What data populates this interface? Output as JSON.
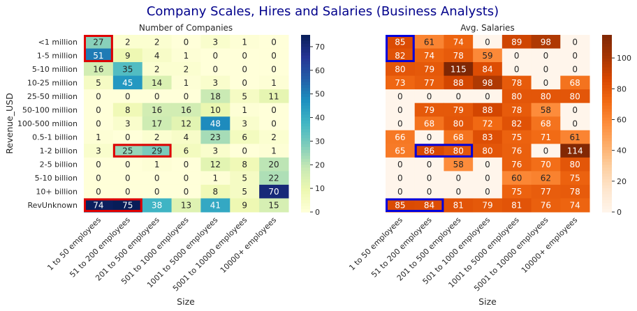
{
  "chart_data": {
    "title": "Company Scales, Hires and Salaries (Business Analysts)",
    "panels": [
      {
        "type": "heatmap",
        "title": "Number of Companies",
        "xlabel": "Size",
        "ylabel": "Revenue_USD",
        "colormap": "YlGnBu",
        "vmin": 0,
        "vmax": 75,
        "colorbar_ticks": [
          0,
          10,
          20,
          30,
          40,
          50,
          60,
          70
        ],
        "highlight_color": "#e00000",
        "highlights": [
          {
            "row_start": 0,
            "row_end": 1,
            "col_start": 0,
            "col_end": 0
          },
          {
            "row_start": 8,
            "row_end": 8,
            "col_start": 1,
            "col_end": 2
          },
          {
            "row_start": 12,
            "row_end": 12,
            "col_start": 0,
            "col_end": 1
          }
        ],
        "values": [
          [
            27,
            2,
            2,
            0,
            3,
            1,
            0
          ],
          [
            51,
            9,
            4,
            1,
            0,
            0,
            0
          ],
          [
            16,
            35,
            2,
            2,
            0,
            0,
            0
          ],
          [
            5,
            45,
            14,
            1,
            3,
            0,
            1
          ],
          [
            0,
            0,
            0,
            0,
            18,
            5,
            11
          ],
          [
            0,
            8,
            16,
            16,
            10,
            1,
            0
          ],
          [
            0,
            3,
            17,
            12,
            48,
            3,
            0
          ],
          [
            1,
            0,
            2,
            4,
            23,
            6,
            2
          ],
          [
            3,
            25,
            29,
            6,
            3,
            0,
            1
          ],
          [
            0,
            0,
            1,
            0,
            12,
            8,
            20
          ],
          [
            0,
            0,
            0,
            0,
            1,
            5,
            22
          ],
          [
            0,
            0,
            0,
            0,
            8,
            5,
            70
          ],
          [
            74,
            75,
            38,
            13,
            41,
            9,
            15
          ]
        ]
      },
      {
        "type": "heatmap",
        "title": "Avg. Salaries",
        "xlabel": "Size",
        "ylabel": "",
        "colormap": "Oranges",
        "vmin": 0,
        "vmax": 115,
        "colorbar_ticks": [
          0,
          20,
          40,
          60,
          80,
          100
        ],
        "highlight_color": "#0000dd",
        "highlights": [
          {
            "row_start": 0,
            "row_end": 1,
            "col_start": 0,
            "col_end": 0
          },
          {
            "row_start": 8,
            "row_end": 8,
            "col_start": 1,
            "col_end": 2
          },
          {
            "row_start": 12,
            "row_end": 12,
            "col_start": 0,
            "col_end": 1
          }
        ],
        "values": [
          [
            85,
            61,
            74,
            0,
            89,
            98,
            0
          ],
          [
            82,
            74,
            78,
            59,
            0,
            0,
            0
          ],
          [
            80,
            79,
            115,
            84,
            0,
            0,
            0
          ],
          [
            73,
            77,
            88,
            98,
            78,
            0,
            68
          ],
          [
            0,
            0,
            0,
            0,
            80,
            80,
            80
          ],
          [
            0,
            79,
            79,
            88,
            78,
            58,
            0
          ],
          [
            0,
            68,
            80,
            72,
            82,
            68,
            0
          ],
          [
            66,
            0,
            68,
            83,
            75,
            71,
            61
          ],
          [
            65,
            86,
            80,
            80,
            76,
            0,
            114
          ],
          [
            0,
            0,
            58,
            0,
            76,
            70,
            80
          ],
          [
            0,
            0,
            0,
            0,
            60,
            62,
            75
          ],
          [
            0,
            0,
            0,
            0,
            75,
            77,
            78
          ],
          [
            85,
            84,
            81,
            79,
            81,
            76,
            74
          ]
        ]
      }
    ],
    "rows": [
      "<1 million",
      "1-5 million",
      "5-10 million",
      "10-25 million",
      "25-50 million",
      "50-100 million",
      "100-500 million",
      "0.5-1 billion",
      "1-2 billion",
      "2-5 billion",
      "5-10 billion",
      "10+ billion",
      "RevUnknown"
    ],
    "columns": [
      "1 to 50 employees",
      "51 to 200 employees",
      "201 to 500 employees",
      "501 to 1000 employees",
      "1001 to 5000 employees",
      "5001 to 10000 employees",
      "10000+ employees"
    ]
  }
}
